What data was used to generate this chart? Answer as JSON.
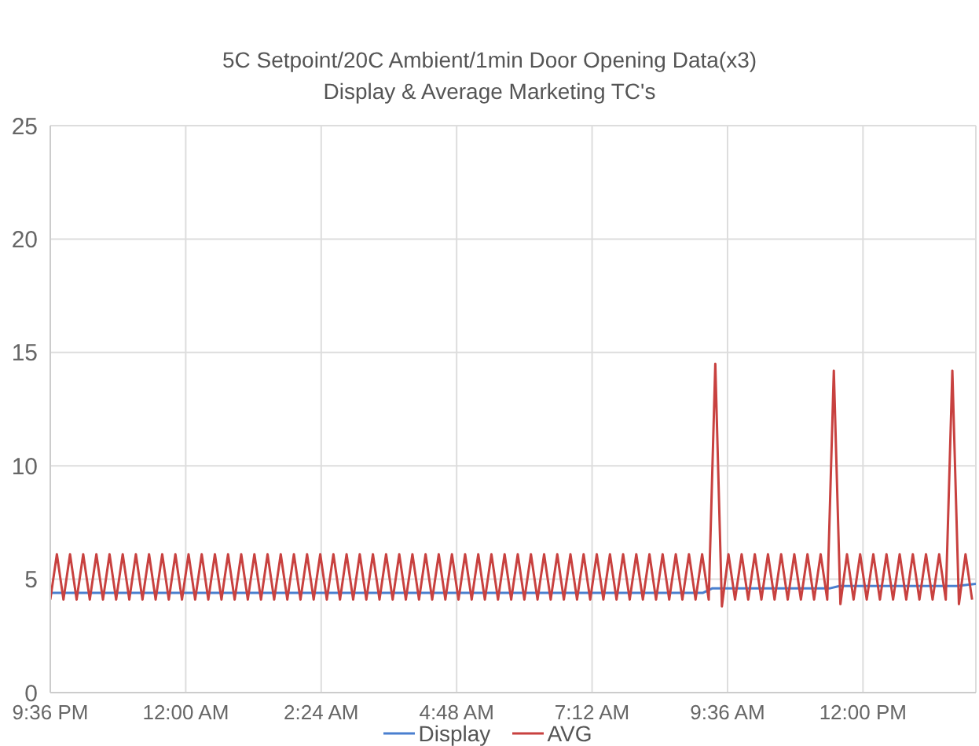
{
  "chart_data": {
    "type": "line",
    "title": "5C Setpoint/20C Ambient/1min Door Opening Data(x3)",
    "subtitle": "Display & Average Marketing TC's",
    "xlim": [
      "--01-01T21:36",
      "--01-02T14:00"
    ],
    "xticks": [
      {
        "value": "--01-01T21:36",
        "label": "9:36 PM"
      },
      {
        "value": "--01-02T00:00",
        "label": "12:00 AM"
      },
      {
        "value": "--01-02T02:24",
        "label": "2:24 AM"
      },
      {
        "value": "--01-02T04:48",
        "label": "4:48 AM"
      },
      {
        "value": "--01-02T07:12",
        "label": "7:12 AM"
      },
      {
        "value": "--01-02T09:36",
        "label": "9:36 AM"
      },
      {
        "value": "--01-02T12:00",
        "label": "12:00 PM"
      }
    ],
    "ylim": [
      0,
      25
    ],
    "yticks": [
      0,
      5,
      10,
      15,
      20,
      25
    ],
    "grid": true,
    "legend": "bottom",
    "marker": "none",
    "line_style": "solid",
    "series": [
      {
        "name": "Display",
        "color": "#4a7fcf",
        "x": [
          "--01-01T21:36",
          "--01-02T09:10",
          "--01-02T09:20",
          "--01-02T11:25",
          "--01-02T11:35",
          "--01-02T13:40",
          "--01-02T14:00"
        ],
        "values": [
          4.4,
          4.4,
          4.6,
          4.6,
          4.7,
          4.7,
          4.8
        ]
      },
      {
        "name": "AVG",
        "color": "#c8413f",
        "x": [
          "--01-01T21:36",
          "--01-01T21:43",
          "--01-01T21:50",
          "--01-01T21:57",
          "--01-01T22:04",
          "--01-01T22:11",
          "--01-01T22:18",
          "--01-01T22:25",
          "--01-01T22:32",
          "--01-01T22:39",
          "--01-01T22:46",
          "--01-01T22:53",
          "--01-01T23:00",
          "--01-01T23:07",
          "--01-01T23:14",
          "--01-01T23:21",
          "--01-01T23:28",
          "--01-01T23:35",
          "--01-01T23:42",
          "--01-01T23:49",
          "--01-01T23:56",
          "--01-02T00:03",
          "--01-02T00:10",
          "--01-02T00:17",
          "--01-02T00:24",
          "--01-02T00:31",
          "--01-02T00:38",
          "--01-02T00:45",
          "--01-02T00:52",
          "--01-02T00:59",
          "--01-02T01:06",
          "--01-02T01:13",
          "--01-02T01:20",
          "--01-02T01:27",
          "--01-02T01:34",
          "--01-02T01:41",
          "--01-02T01:48",
          "--01-02T01:55",
          "--01-02T02:02",
          "--01-02T02:09",
          "--01-02T02:16",
          "--01-02T02:23",
          "--01-02T02:30",
          "--01-02T02:37",
          "--01-02T02:44",
          "--01-02T02:51",
          "--01-02T02:58",
          "--01-02T03:05",
          "--01-02T03:12",
          "--01-02T03:19",
          "--01-02T03:26",
          "--01-02T03:33",
          "--01-02T03:40",
          "--01-02T03:47",
          "--01-02T03:54",
          "--01-02T04:01",
          "--01-02T04:08",
          "--01-02T04:15",
          "--01-02T04:22",
          "--01-02T04:29",
          "--01-02T04:36",
          "--01-02T04:43",
          "--01-02T04:50",
          "--01-02T04:57",
          "--01-02T05:04",
          "--01-02T05:11",
          "--01-02T05:18",
          "--01-02T05:25",
          "--01-02T05:32",
          "--01-02T05:39",
          "--01-02T05:46",
          "--01-02T05:53",
          "--01-02T06:00",
          "--01-02T06:07",
          "--01-02T06:14",
          "--01-02T06:21",
          "--01-02T06:28",
          "--01-02T06:35",
          "--01-02T06:42",
          "--01-02T06:49",
          "--01-02T06:56",
          "--01-02T07:03",
          "--01-02T07:10",
          "--01-02T07:17",
          "--01-02T07:24",
          "--01-02T07:31",
          "--01-02T07:38",
          "--01-02T07:45",
          "--01-02T07:52",
          "--01-02T07:59",
          "--01-02T08:06",
          "--01-02T08:13",
          "--01-02T08:20",
          "--01-02T08:27",
          "--01-02T08:34",
          "--01-02T08:41",
          "--01-02T08:48",
          "--01-02T08:55",
          "--01-02T09:02",
          "--01-02T09:09",
          "--01-02T09:16",
          "--01-02T09:23",
          "--01-02T09:30",
          "--01-02T09:37",
          "--01-02T09:44",
          "--01-02T09:51",
          "--01-02T09:58",
          "--01-02T10:05",
          "--01-02T10:12",
          "--01-02T10:19",
          "--01-02T10:26",
          "--01-02T10:33",
          "--01-02T10:40",
          "--01-02T10:47",
          "--01-02T10:54",
          "--01-02T11:01",
          "--01-02T11:08",
          "--01-02T11:15",
          "--01-02T11:22",
          "--01-02T11:29",
          "--01-02T11:36",
          "--01-02T11:43",
          "--01-02T11:50",
          "--01-02T11:57",
          "--01-02T12:04",
          "--01-02T12:11",
          "--01-02T12:18",
          "--01-02T12:25",
          "--01-02T12:32",
          "--01-02T12:39",
          "--01-02T12:46",
          "--01-02T12:53",
          "--01-02T13:00",
          "--01-02T13:07",
          "--01-02T13:14",
          "--01-02T13:21",
          "--01-02T13:28",
          "--01-02T13:35",
          "--01-02T13:42",
          "--01-02T13:49",
          "--01-02T13:56"
        ],
        "values": [
          4.1,
          6.1,
          4.1,
          6.1,
          4.1,
          6.1,
          4.1,
          6.1,
          4.1,
          6.1,
          4.1,
          6.1,
          4.1,
          6.1,
          4.1,
          6.1,
          4.1,
          6.1,
          4.1,
          6.1,
          4.1,
          6.1,
          4.1,
          6.1,
          4.1,
          6.1,
          4.1,
          6.1,
          4.1,
          6.1,
          4.1,
          6.1,
          4.1,
          6.1,
          4.1,
          6.1,
          4.1,
          6.1,
          4.1,
          6.1,
          4.1,
          6.1,
          4.1,
          6.1,
          4.1,
          6.1,
          4.1,
          6.1,
          4.1,
          6.1,
          4.1,
          6.1,
          4.1,
          6.1,
          4.1,
          6.1,
          4.1,
          6.1,
          4.1,
          6.1,
          4.1,
          6.1,
          4.1,
          6.1,
          4.1,
          6.1,
          4.1,
          6.1,
          4.1,
          6.1,
          4.1,
          6.1,
          4.1,
          6.1,
          4.1,
          6.1,
          4.1,
          6.1,
          4.1,
          6.1,
          4.1,
          6.1,
          4.1,
          6.1,
          4.1,
          6.1,
          4.1,
          6.1,
          4.1,
          6.1,
          4.1,
          6.1,
          4.1,
          6.1,
          4.1,
          6.1,
          4.1,
          6.1,
          4.1,
          6.1,
          4.1,
          14.5,
          3.8,
          6.1,
          4.1,
          6.1,
          4.1,
          6.1,
          4.1,
          6.1,
          4.1,
          6.1,
          4.1,
          6.1,
          4.1,
          6.1,
          4.1,
          6.1,
          4.1,
          14.2,
          3.9,
          6.1,
          4.1,
          6.1,
          4.1,
          6.1,
          4.1,
          6.1,
          4.1,
          6.1,
          4.1,
          6.1,
          4.1,
          6.1,
          4.1,
          6.1,
          4.1,
          14.2,
          3.9,
          6.1,
          4.1
        ]
      }
    ]
  }
}
